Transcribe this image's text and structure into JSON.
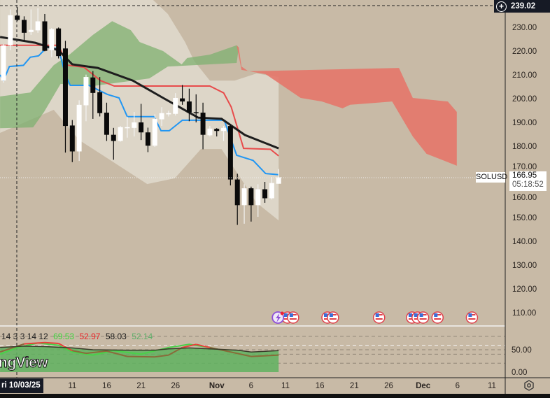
{
  "symbol": "SOLUSD",
  "crosshair": {
    "price_label": "239.02",
    "date_label": "ri 10/03/25"
  },
  "last_price": {
    "value": "166.95",
    "countdown": "05:18:52"
  },
  "price_axis": {
    "labels": [
      "230.00",
      "220.00",
      "210.00",
      "200.00",
      "190.00",
      "180.00",
      "170.00",
      "160.00",
      "150.00",
      "140.00",
      "130.00",
      "120.00",
      "110.00"
    ]
  },
  "oscillator_axis": {
    "labels": [
      "50.00",
      "0.00"
    ]
  },
  "time_axis": {
    "labels": [
      {
        "text": "11",
        "bold": false,
        "day": 10
      },
      {
        "text": "16",
        "bold": false,
        "day": 15
      },
      {
        "text": "21",
        "bold": false,
        "day": 20
      },
      {
        "text": "26",
        "bold": false,
        "day": 25
      },
      {
        "text": "Nov",
        "bold": true,
        "day": 31
      },
      {
        "text": "6",
        "bold": false,
        "day": 36
      },
      {
        "text": "11",
        "bold": false,
        "day": 41
      },
      {
        "text": "16",
        "bold": false,
        "day": 46
      },
      {
        "text": "21",
        "bold": false,
        "day": 51
      },
      {
        "text": "26",
        "bold": false,
        "day": 56
      },
      {
        "text": "Dec",
        "bold": true,
        "day": 61
      },
      {
        "text": "6",
        "bold": false,
        "day": 66
      },
      {
        "text": "11",
        "bold": false,
        "day": 71
      }
    ]
  },
  "oscillator_legend": {
    "params": "14 3 3 14 12",
    "values": [
      {
        "text": "69.53",
        "color": "#3ed43e"
      },
      {
        "text": "52.97",
        "color": "#e8262a"
      },
      {
        "text": "58.03",
        "color": "#1a1a1a"
      },
      {
        "text": "52.14",
        "color": "#5fae6a"
      }
    ]
  },
  "watermark": "ngView",
  "events": {
    "flag_days": [
      41.3,
      42.1,
      47.1,
      47.9,
      54.6,
      59.4,
      60.2,
      61,
      63.1,
      68.1
    ],
    "lightning_day": 39.8
  },
  "colors": {
    "background": "#c8baa6",
    "ema": "#1e1e1e",
    "kijun": "#e84b4b",
    "tenkan": "#2196f3",
    "cloud_up": "#7fb070",
    "cloud_down": "#e4776a"
  },
  "chart_data": {
    "type": "candlestick",
    "start_date": "2025-10-01",
    "ylim": [
      104,
      242
    ],
    "candles": [
      [
        207.6,
        222.9,
        206.7,
        222.4
      ],
      [
        222.4,
        237.5,
        220.4,
        235.1
      ],
      [
        234.9,
        238.5,
        232.6,
        233.1
      ],
      [
        233.1,
        234.6,
        224.3,
        227.7
      ],
      [
        228.0,
        237.5,
        226.8,
        228.9
      ],
      [
        228.7,
        238.0,
        227.7,
        232.5
      ],
      [
        232.5,
        235.6,
        219.9,
        220.1
      ],
      [
        220.4,
        229.7,
        217.4,
        229.2
      ],
      [
        229.5,
        229.9,
        216.9,
        217.9
      ],
      [
        221.1,
        224.3,
        177.3,
        188.5
      ],
      [
        188.7,
        191.0,
        173.3,
        177.8
      ],
      [
        177.8,
        199.3,
        173.8,
        197.4
      ],
      [
        197.2,
        210.1,
        190.5,
        209.1
      ],
      [
        208.9,
        211.6,
        191.5,
        202.4
      ],
      [
        202.7,
        209.1,
        192.5,
        193.9
      ],
      [
        194.1,
        198.3,
        182.2,
        184.8
      ],
      [
        184.8,
        187.7,
        174.3,
        182.2
      ],
      [
        182.2,
        188.5,
        181.9,
        188.0
      ],
      [
        187.6,
        192.4,
        183.6,
        188.0
      ],
      [
        187.7,
        194.4,
        184.1,
        190.0
      ],
      [
        190.0,
        197.8,
        182.6,
        185.8
      ],
      [
        185.8,
        187.8,
        177.5,
        180.2
      ],
      [
        180.2,
        193.4,
        179.7,
        191.5
      ],
      [
        191.3,
        196.4,
        188.5,
        193.9
      ],
      [
        193.4,
        194.9,
        192.5,
        193.9
      ],
      [
        193.6,
        202.3,
        192.9,
        200.3
      ],
      [
        200.1,
        205.7,
        197.4,
        198.8
      ],
      [
        198.8,
        204.2,
        190.5,
        194.2
      ],
      [
        194.3,
        201.8,
        190.0,
        194.2
      ],
      [
        194.1,
        198.3,
        178.7,
        184.8
      ],
      [
        184.6,
        188.5,
        184.1,
        187.4
      ],
      [
        187.3,
        187.6,
        184.1,
        186.4
      ],
      [
        186.4,
        188.5,
        182.2,
        187.7
      ],
      [
        188.5,
        189.0,
        163.5,
        166.0
      ],
      [
        166.0,
        168.4,
        146.9,
        155.2
      ],
      [
        155.2,
        164.0,
        147.4,
        162.3
      ],
      [
        162.3,
        163.0,
        148.3,
        155.2
      ],
      [
        155.2,
        164.0,
        150.3,
        161.9
      ],
      [
        161.9,
        165.0,
        156.2,
        158.1
      ],
      [
        158.1,
        167.0,
        157.6,
        164.5
      ],
      [
        164.2,
        170.4,
        164.2,
        166.95
      ]
    ],
    "ema": [
      [
        -0.5,
        225.9
      ],
      [
        4.6,
        223.5
      ],
      [
        8,
        220.3
      ],
      [
        10,
        214.4
      ],
      [
        13.7,
        212.9
      ],
      [
        18.8,
        207.6
      ],
      [
        23.2,
        200.3
      ],
      [
        28.3,
        192
      ],
      [
        31.7,
        191.5
      ],
      [
        35.1,
        184.7
      ],
      [
        40,
        179.1
      ]
    ],
    "kijun": [
      [
        -0.5,
        222.4
      ],
      [
        8,
        222.4
      ],
      [
        9.3,
        214.1
      ],
      [
        11.7,
        213.2
      ],
      [
        14.1,
        207.6
      ],
      [
        16.1,
        205.3
      ],
      [
        30,
        205.3
      ],
      [
        32,
        202.4
      ],
      [
        33.1,
        196.5
      ],
      [
        34.9,
        179.1
      ],
      [
        38.8,
        178.7
      ],
      [
        40,
        175.9
      ]
    ],
    "tenkan": [
      [
        -0.5,
        210
      ],
      [
        0,
        207.6
      ],
      [
        0.85,
        213.5
      ],
      [
        2.9,
        214
      ],
      [
        3.9,
        217.4
      ],
      [
        5.1,
        218
      ],
      [
        6.3,
        221.5
      ],
      [
        8,
        221
      ],
      [
        9,
        210
      ],
      [
        9.7,
        205.6
      ],
      [
        12.4,
        205.6
      ],
      [
        15.1,
        201.8
      ],
      [
        16.8,
        200.3
      ],
      [
        18,
        192.4
      ],
      [
        21.9,
        192.4
      ],
      [
        22.9,
        186.5
      ],
      [
        24.1,
        186.5
      ],
      [
        26,
        190.9
      ],
      [
        32.1,
        190.9
      ],
      [
        33.9,
        176.2
      ],
      [
        36.3,
        174
      ],
      [
        38.1,
        168.5
      ],
      [
        40,
        168
      ]
    ],
    "span_a": [
      [
        -0.5,
        200.9
      ],
      [
        3.9,
        202.6
      ],
      [
        7.3,
        214.1
      ],
      [
        9.7,
        218.8
      ],
      [
        13,
        226.8
      ],
      [
        15.8,
        232.6
      ],
      [
        18.5,
        228.8
      ],
      [
        19.8,
        223.8
      ],
      [
        23.2,
        220
      ],
      [
        25.9,
        214.4
      ],
      [
        26.7,
        217.1
      ],
      [
        30,
        218.5
      ],
      [
        33.9,
        222.4
      ],
      [
        34.6,
        212.1
      ],
      [
        38.1,
        210.3
      ],
      [
        43.2,
        200.3
      ],
      [
        46.3,
        198.8
      ],
      [
        49.3,
        195.9
      ],
      [
        50.4,
        197.4
      ],
      [
        56.5,
        198.8
      ],
      [
        59.5,
        184.1
      ],
      [
        61.5,
        176.8
      ],
      [
        65.9,
        171.8
      ]
    ],
    "span_b": [
      [
        -0.5,
        187.6
      ],
      [
        4.3,
        187.9
      ],
      [
        5.9,
        194.4
      ],
      [
        8.3,
        206.2
      ],
      [
        13,
        205.3
      ],
      [
        21.2,
        208.5
      ],
      [
        23.9,
        213.5
      ],
      [
        30,
        214.4
      ],
      [
        33.9,
        215
      ],
      [
        34.2,
        221.5
      ],
      [
        34.6,
        213.5
      ],
      [
        35.6,
        211.5
      ],
      [
        57.5,
        212.9
      ],
      [
        59.5,
        200.3
      ],
      [
        64.6,
        198.8
      ],
      [
        65.9,
        194.4
      ]
    ],
    "band_upper": [
      [
        -0.5,
        243
      ],
      [
        21.2,
        243
      ],
      [
        23.9,
        235.6
      ],
      [
        26.4,
        223.8
      ],
      [
        27.7,
        215.9
      ],
      [
        30,
        207.6
      ],
      [
        33.6,
        207.6
      ],
      [
        36.8,
        210.6
      ],
      [
        40,
        209.1
      ]
    ],
    "band_lower": [
      [
        -0.5,
        185.6
      ],
      [
        7.3,
        195.3
      ],
      [
        11,
        182.6
      ],
      [
        20.9,
        164.1
      ],
      [
        24.9,
        166.5
      ],
      [
        28.7,
        178.8
      ],
      [
        31.7,
        178.8
      ],
      [
        36.8,
        156.2
      ],
      [
        40,
        148.8
      ]
    ],
    "oscillator": {
      "ylim": [
        0,
        100
      ],
      "levels": [
        80,
        60,
        50,
        40,
        20
      ],
      "black": [
        [
          -0.5,
          55
        ],
        [
          3,
          58
        ],
        [
          6,
          57
        ],
        [
          10,
          54
        ],
        [
          13,
          50
        ],
        [
          18,
          49
        ],
        [
          22,
          49
        ],
        [
          24,
          52
        ],
        [
          27,
          54
        ],
        [
          30,
          52
        ],
        [
          34,
          49
        ],
        [
          36,
          45
        ],
        [
          40,
          48
        ]
      ],
      "green": [
        [
          -0.5,
          40
        ],
        [
          2,
          55
        ],
        [
          5,
          65
        ],
        [
          8,
          60
        ],
        [
          10,
          45
        ],
        [
          13,
          38
        ],
        [
          16,
          48
        ],
        [
          20,
          40
        ],
        [
          24,
          55
        ],
        [
          27,
          62
        ],
        [
          30,
          55
        ],
        [
          33,
          45
        ],
        [
          36,
          35
        ],
        [
          40,
          38
        ]
      ],
      "signal": [
        [
          -0.5,
          45
        ],
        [
          3,
          63
        ],
        [
          6,
          66
        ],
        [
          8,
          64
        ],
        [
          10,
          48
        ],
        [
          12,
          42
        ],
        [
          15,
          47
        ],
        [
          18,
          35
        ],
        [
          22,
          34
        ],
        [
          24,
          38
        ],
        [
          26,
          55
        ],
        [
          28,
          62
        ],
        [
          30,
          55
        ],
        [
          33,
          45
        ],
        [
          36,
          35
        ],
        [
          40,
          38
        ]
      ]
    }
  }
}
